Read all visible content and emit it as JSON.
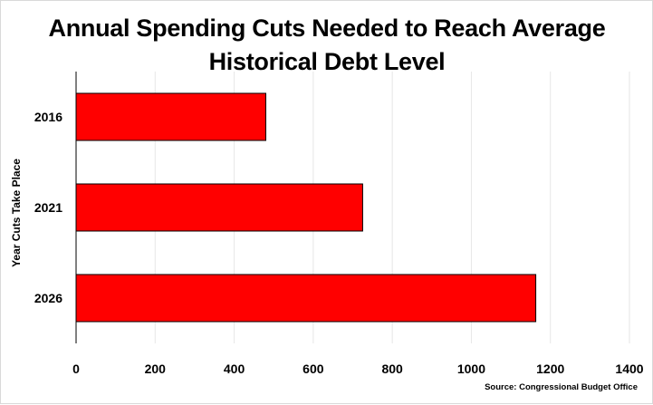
{
  "chart_data": {
    "type": "bar",
    "orientation": "horizontal",
    "title": "Annual Spending Cuts Needed to Reach Average Historical Debt Level",
    "xlabel": "",
    "ylabel": "Year Cuts Take Place",
    "categories": [
      "2016",
      "2021",
      "2026"
    ],
    "values": [
      480,
      725,
      1163
    ],
    "xlim": [
      0,
      1400
    ],
    "x_ticks": [
      0,
      200,
      400,
      600,
      800,
      1000,
      1200,
      1400
    ],
    "grid": "vertical",
    "legend": "none",
    "bar_color": "#ff0000",
    "bar_border_color": "#000000",
    "source": "Source: Congressional Budget Office"
  }
}
